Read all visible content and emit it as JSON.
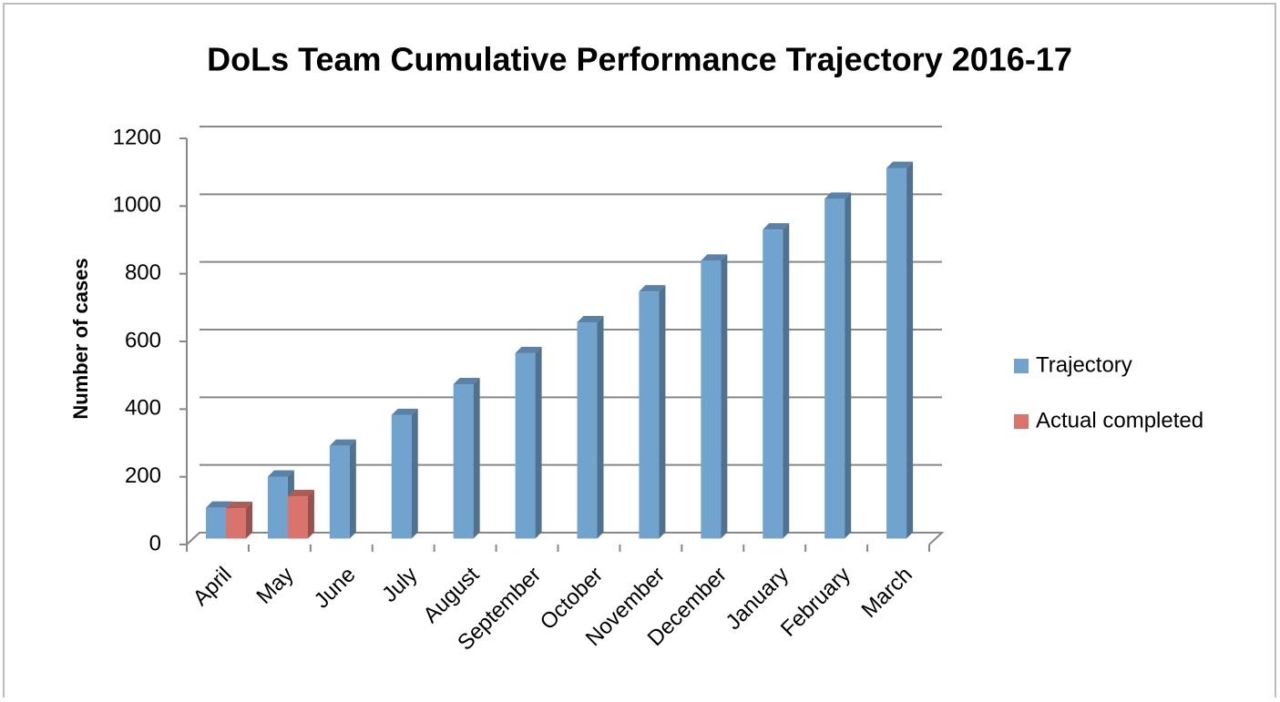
{
  "chart_data": {
    "type": "bar3d",
    "title": "DoLs Team Cumulative Performance Trajectory 2016-17",
    "y_label": "Number of cases",
    "categories": [
      "April",
      "May",
      "June",
      "July",
      "August",
      "September",
      "October",
      "November",
      "December",
      "January",
      "February",
      "March"
    ],
    "series": [
      {
        "name": "Trajectory",
        "color": "#71a3cf",
        "values": [
          91,
          183,
          274,
          365,
          456,
          548,
          639,
          730,
          821,
          913,
          1004,
          1095
        ]
      },
      {
        "name": "Actual completed",
        "color": "#d9736c",
        "values": [
          90,
          125,
          null,
          null,
          null,
          null,
          null,
          null,
          null,
          null,
          null,
          null
        ]
      }
    ],
    "ylim": [
      0,
      1200
    ],
    "yticks": [
      0,
      200,
      400,
      600,
      800,
      1000,
      1200
    ],
    "grid": true,
    "legend": "right"
  }
}
